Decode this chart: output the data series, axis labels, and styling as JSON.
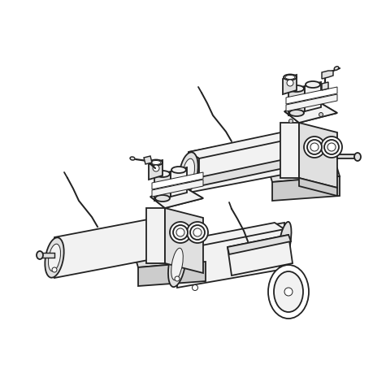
{
  "background_color": "#ffffff",
  "line_color": "#222222",
  "fill_white": "#ffffff",
  "fill_light": "#f2f2f2",
  "fill_mid": "#e0e0e0",
  "fill_dark": "#cccccc",
  "fill_darker": "#b8b8b8",
  "lw_main": 1.3,
  "lw_thin": 0.7,
  "lw_thick": 1.8,
  "fig_width": 4.6,
  "fig_height": 4.6,
  "dpi": 100
}
